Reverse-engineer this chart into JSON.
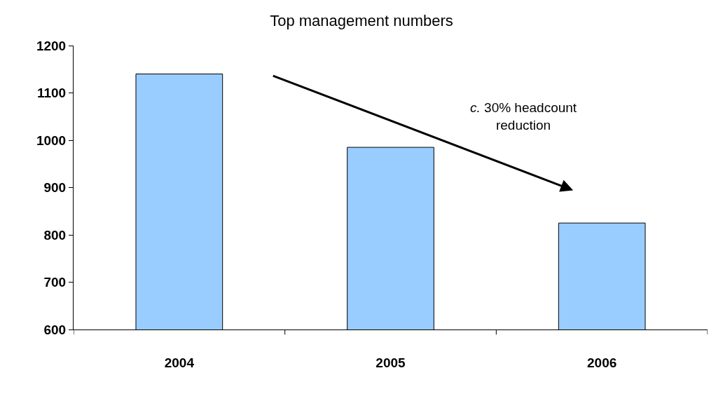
{
  "chart_data": {
    "type": "bar",
    "title": "Top management numbers",
    "categories": [
      "2004",
      "2005",
      "2006"
    ],
    "values": [
      1140,
      985,
      825
    ],
    "color": "#99ccff",
    "ylim": [
      600,
      1200
    ],
    "yticks": [
      600,
      700,
      800,
      900,
      1000,
      1100,
      1200
    ],
    "annotations": [
      "c. 30% headcount\nreduction"
    ]
  }
}
